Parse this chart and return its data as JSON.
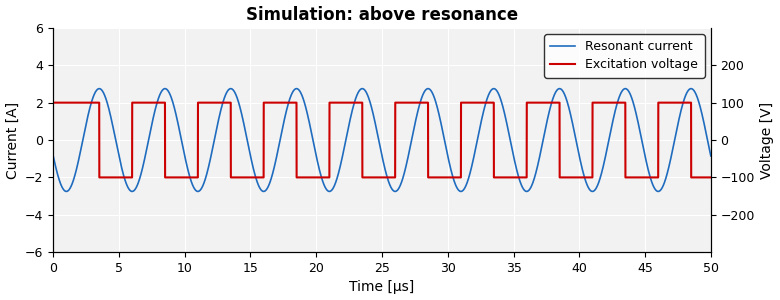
{
  "title": "Simulation: above resonance",
  "xlabel": "Time [μs]",
  "ylabel_left": "Current [A]",
  "ylabel_right": "Voltage [V]",
  "xlim": [
    0,
    50
  ],
  "ylim_left": [
    -6,
    6
  ],
  "ylim_right": [
    -300,
    300
  ],
  "yticks_left": [
    -6,
    -4,
    -2,
    0,
    2,
    4,
    6
  ],
  "yticks_right": [
    -200,
    -100,
    0,
    100,
    200
  ],
  "xticks": [
    0,
    5,
    10,
    15,
    20,
    25,
    30,
    35,
    40,
    45,
    50
  ],
  "current_color": "#1f6cbf",
  "voltage_color": "#cc0000",
  "current_label": "Resonant current",
  "voltage_label": "Excitation voltage",
  "current_amplitude": 2.75,
  "voltage_amplitude": 100,
  "period_us": 5.0,
  "background_color": "#f2f2f2",
  "title_fontsize": 12,
  "axis_label_fontsize": 10,
  "legend_fontsize": 9,
  "current_linewidth": 1.2,
  "voltage_linewidth": 1.5,
  "sq_transition_start": 3.5,
  "sq_half_period": 2.5
}
